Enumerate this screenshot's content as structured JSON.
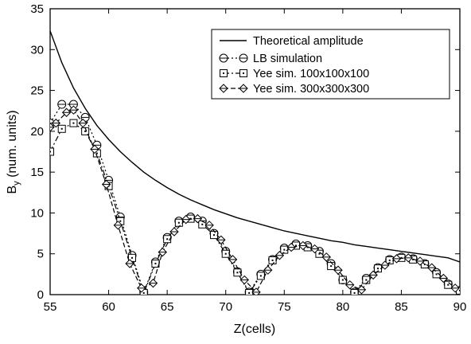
{
  "chart_data": {
    "type": "line",
    "xlabel": "Z(cells)",
    "ylabel_main": "B",
    "ylabel_sub": "y",
    "ylabel_tail": " (num. units)",
    "xlim": [
      55,
      90
    ],
    "ylim": [
      0,
      35
    ],
    "xticks": [
      55,
      60,
      65,
      70,
      75,
      80,
      85,
      90
    ],
    "yticks": [
      0,
      5,
      10,
      15,
      20,
      25,
      30,
      35
    ],
    "grid": false,
    "legend_position": "top-right",
    "theory": {
      "name": "Theoretical amplitude",
      "x": [
        55,
        56,
        57,
        58,
        59,
        60,
        61,
        62,
        63,
        64,
        65,
        66,
        67,
        68,
        69,
        70,
        71,
        72,
        73,
        74,
        75,
        76,
        77,
        78,
        79,
        80,
        81,
        82,
        83,
        84,
        85,
        86,
        87,
        88,
        89,
        90
      ],
      "y": [
        32.3,
        28.4,
        25.3,
        22.8,
        20.7,
        19.0,
        17.5,
        16.2,
        15.0,
        14.0,
        13.1,
        12.3,
        11.6,
        11.0,
        10.4,
        9.9,
        9.4,
        9.0,
        8.6,
        8.2,
        7.8,
        7.5,
        7.2,
        6.9,
        6.6,
        6.4,
        6.1,
        5.9,
        5.7,
        5.5,
        5.3,
        5.1,
        4.9,
        4.7,
        4.5,
        4.0
      ]
    },
    "series": [
      {
        "name": "LB simulation",
        "marker": "circle",
        "dash": "2,3",
        "x": [
          55,
          56,
          57,
          58,
          59,
          60,
          61,
          62,
          63,
          64,
          65,
          66,
          67,
          68,
          69,
          70,
          71,
          72,
          73,
          74,
          75,
          76,
          77,
          78,
          79,
          80,
          81,
          82,
          83,
          84,
          85,
          86,
          87,
          88,
          89,
          90
        ],
        "y": [
          21.0,
          23.3,
          23.3,
          21.7,
          18.3,
          14.0,
          9.5,
          4.8,
          0.3,
          4.0,
          7.0,
          9.0,
          9.5,
          9.0,
          7.5,
          5.3,
          2.8,
          0.3,
          2.5,
          4.3,
          5.7,
          6.2,
          6.0,
          5.3,
          3.8,
          1.8,
          0.3,
          2.0,
          3.3,
          4.3,
          4.6,
          4.4,
          3.8,
          2.7,
          1.3,
          0.5
        ]
      },
      {
        "name": "Yee sim. 100x100x100",
        "marker": "square",
        "dash": "7,3,2,3",
        "x": [
          55,
          56,
          57,
          58,
          59,
          60,
          61,
          62,
          63,
          64,
          65,
          66,
          67,
          68,
          69,
          70,
          71,
          72,
          73,
          74,
          75,
          76,
          77,
          78,
          79,
          80,
          81,
          82,
          83,
          84,
          85,
          86,
          87,
          88,
          89,
          90
        ],
        "y": [
          17.5,
          20.3,
          21.0,
          20.0,
          17.3,
          13.3,
          9.0,
          4.5,
          0.2,
          3.8,
          6.8,
          8.8,
          9.3,
          8.6,
          7.3,
          5.0,
          2.7,
          0.2,
          2.3,
          4.2,
          5.5,
          6.0,
          5.8,
          5.0,
          3.5,
          1.8,
          0.2,
          1.8,
          3.2,
          4.2,
          4.5,
          4.3,
          3.7,
          2.5,
          1.2,
          0.5
        ]
      },
      {
        "name": "Yee sim. 300x300x300",
        "marker": "diamond",
        "dash": "6,3",
        "x": [
          55,
          55.5,
          56.4,
          57,
          57.8,
          58.8,
          59.8,
          60.8,
          61.8,
          62.8,
          63.8,
          64.6,
          65.6,
          66.6,
          67.6,
          68.6,
          69.6,
          70.6,
          71.6,
          72.6,
          73.6,
          74.6,
          75.6,
          76.6,
          77.6,
          78.6,
          79.6,
          80.6,
          81.6,
          82.6,
          83.6,
          84.6,
          85.6,
          86.6,
          87.6,
          88.6,
          89.6
        ],
        "y": [
          20.5,
          21.0,
          22.3,
          22.6,
          21.0,
          17.8,
          13.5,
          8.5,
          3.8,
          0.8,
          1.4,
          5.2,
          7.7,
          9.2,
          9.3,
          8.5,
          6.7,
          4.3,
          1.8,
          0.3,
          3.0,
          4.8,
          5.8,
          6.0,
          5.6,
          4.6,
          3.0,
          1.2,
          0.6,
          2.4,
          3.6,
          4.4,
          4.5,
          4.1,
          3.3,
          2.0,
          0.8
        ]
      }
    ]
  }
}
